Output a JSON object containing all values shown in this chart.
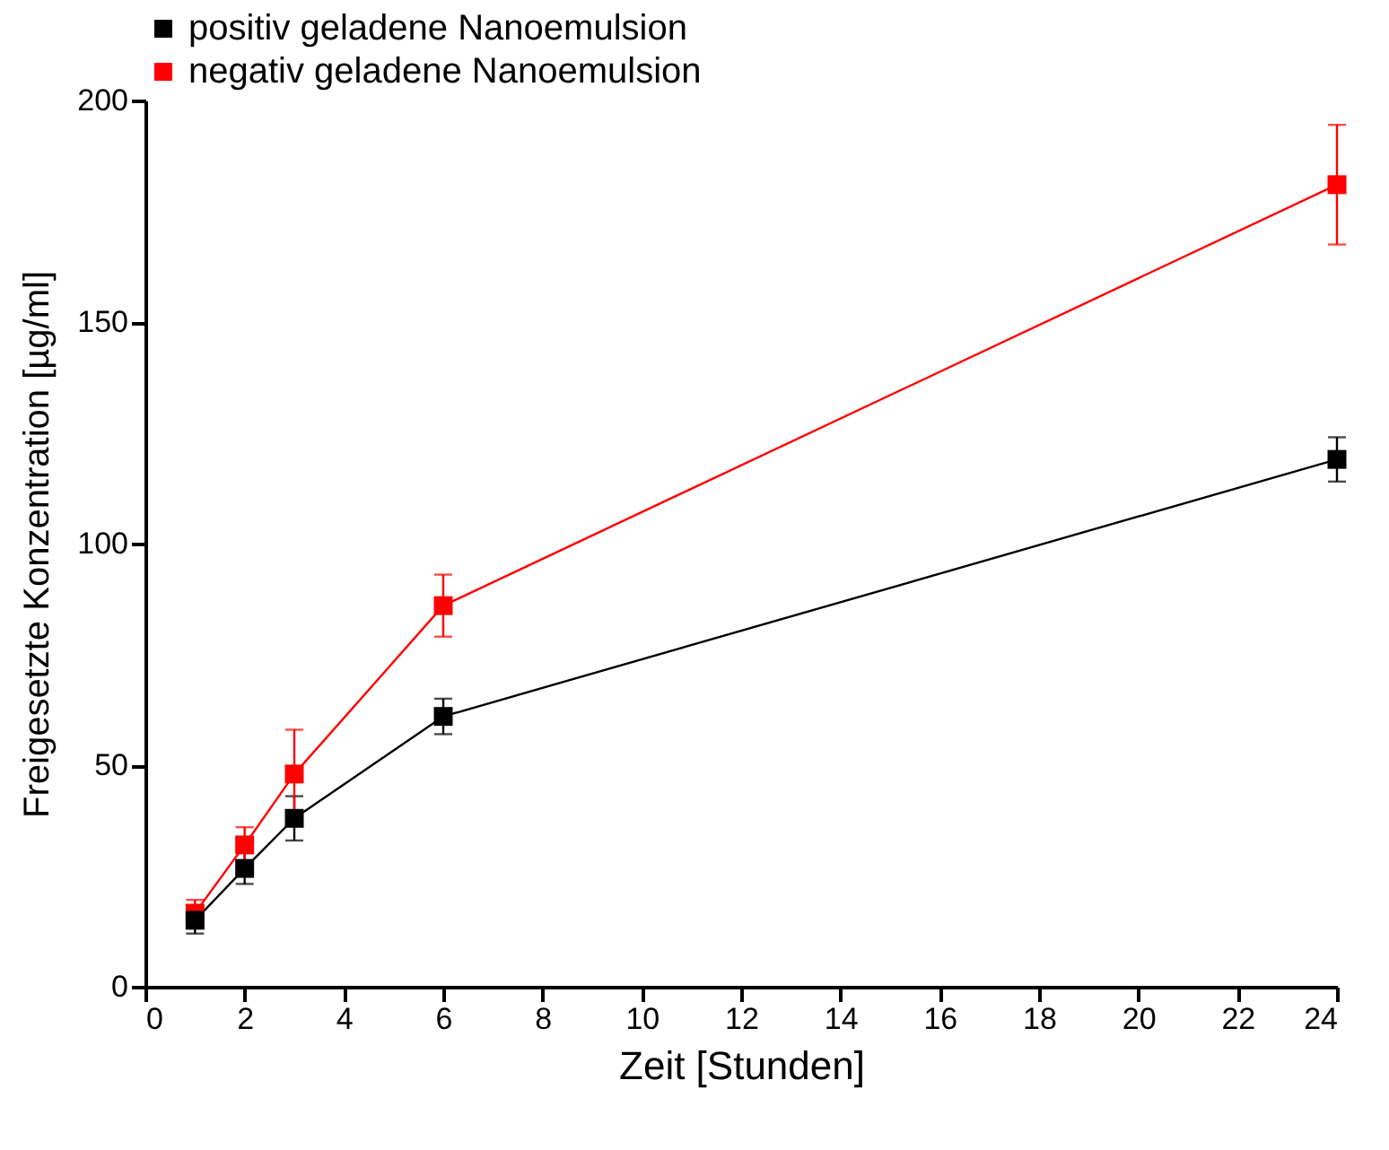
{
  "chart_data": {
    "type": "line",
    "xlabel": "Zeit  [Stunden]",
    "ylabel": "Freigesetzte Konzentration [µg/ml]",
    "x": [
      1,
      2,
      3,
      6,
      24
    ],
    "series": [
      {
        "name": "positiv geladene Nanoemulsion",
        "color": "#000000",
        "values": [
          15,
          26.7,
          38,
          61,
          119
        ],
        "errors": [
          3,
          3.5,
          5,
          4,
          5
        ]
      },
      {
        "name": "negativ geladene Nanoemulsion",
        "color": "#ff0000",
        "values": [
          16.6,
          32,
          48,
          86,
          181
        ],
        "errors": [
          3,
          4,
          10,
          7,
          13.5
        ]
      }
    ],
    "xlim": [
      0,
      24
    ],
    "xticks": [
      0,
      2,
      4,
      6,
      8,
      10,
      12,
      14,
      16,
      18,
      20,
      22,
      24
    ],
    "ylim": [
      0,
      200
    ],
    "yticks": [
      0,
      50,
      100,
      150,
      200
    ],
    "grid": false,
    "legend": "top",
    "marker": "square",
    "line_style": "solid"
  }
}
